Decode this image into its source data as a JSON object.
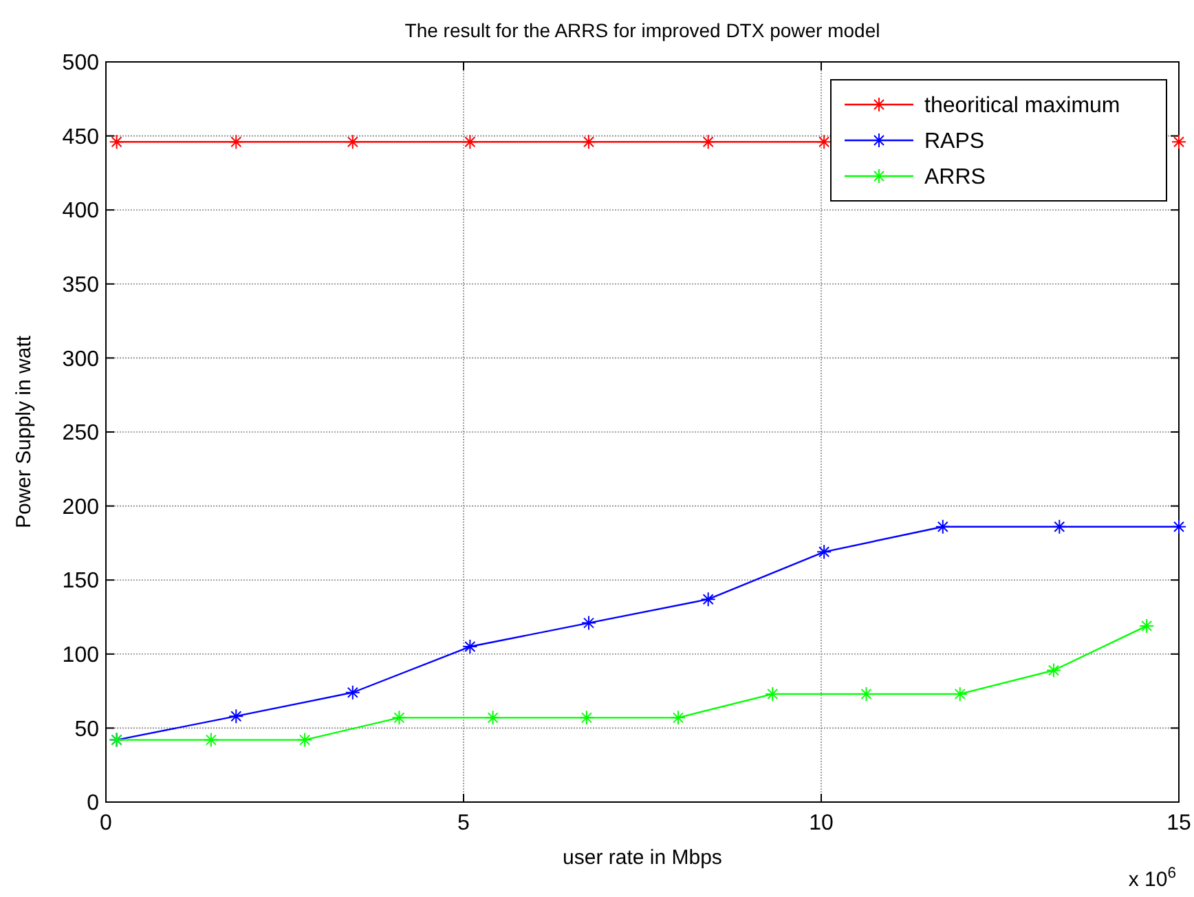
{
  "chart_data": {
    "type": "line",
    "title": "The result for the ARRS for improved DTX power model",
    "xlabel": "user rate in Mbps",
    "ylabel": "Power Supply in watt",
    "annotations": [
      "x 10$^{6}$"
    ],
    "xlim": [
      0,
      15
    ],
    "xticks": [
      0,
      5,
      10,
      15
    ],
    "ylim": [
      0,
      500
    ],
    "yticks": [
      0,
      50,
      100,
      150,
      200,
      250,
      300,
      350,
      400,
      450,
      500
    ],
    "grid": true,
    "legend": "top right",
    "marker": "cross",
    "line_style": "solid",
    "series": [
      {
        "name": "theoritical maximum",
        "color": "#ff0000",
        "x": [
          0.15,
          1.82,
          3.45,
          5.09,
          6.75,
          8.42,
          10.04,
          11.7,
          13.33,
          15
        ],
        "values": [
          446,
          446,
          446,
          446,
          446,
          446,
          446,
          null,
          null,
          446
        ]
      },
      {
        "name": "RAPS",
        "color": "#0000ff",
        "x": [
          0.15,
          1.82,
          3.45,
          5.09,
          6.75,
          8.42,
          10.04,
          11.7,
          13.33,
          15
        ],
        "values": [
          42,
          58,
          74,
          105,
          121,
          137,
          169,
          186,
          186,
          186
        ]
      },
      {
        "name": "ARRS",
        "color": "#00ff00",
        "x": [
          0.15,
          1.47,
          2.78,
          4.1,
          5.41,
          6.72,
          8.0,
          9.32,
          10.63,
          11.94,
          13.25,
          14.55
        ],
        "values": [
          42,
          42,
          42,
          57,
          57,
          57,
          57,
          73,
          73,
          73,
          89,
          119
        ]
      }
    ]
  }
}
